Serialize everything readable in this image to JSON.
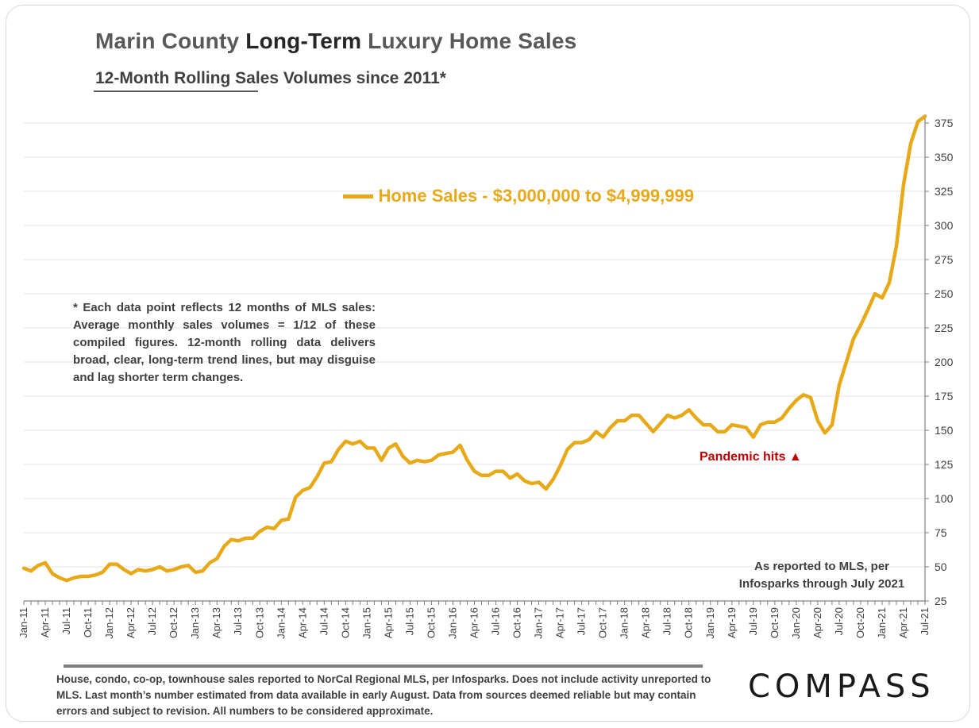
{
  "header": {
    "title_part1": "Marin County ",
    "title_part2": "Long-Term",
    "title_part3": " Luxury Home Sales",
    "subtitle": "12-Month Rolling Sales Volumes since 2011*"
  },
  "annotations": {
    "note": "* Each data point reflects 12 months of MLS sales: Average monthly sales volumes = 1/12 of these compiled figures. 12-month rolling data delivers broad, clear, long-term trend lines, but may disguise and lag shorter term changes.",
    "pandemic": "Pandemic hits ▲",
    "reported_line1": "As reported to MLS, per",
    "reported_line2": "Infosparks through July 2021",
    "footer": "House, condo, co-op, townhouse sales reported to NorCal Regional MLS, per Infosparks. Does not include activity unreported to MLS. Last month’s number estimated from data available in early August. Data from sources deemed reliable but may contain errors and subject to revision.  All numbers to be considered approximate.",
    "logo": "COMPASS"
  },
  "colors": {
    "series": "#e8a919",
    "grid": "#e3e3e3",
    "axis": "#7f7f7f",
    "pandemic": "#c00000"
  },
  "chart_data": {
    "type": "line",
    "ylim": [
      25,
      375
    ],
    "y_ticks": [
      25,
      50,
      75,
      100,
      125,
      150,
      175,
      200,
      225,
      250,
      275,
      300,
      325,
      350,
      375
    ],
    "x_tick_labels": [
      "Jan-11",
      "Apr-11",
      "Jul-11",
      "Oct-11",
      "Jan-12",
      "Apr-12",
      "Jul-12",
      "Oct-12",
      "Jan-13",
      "Apr-13",
      "Jul-13",
      "Oct-13",
      "Jan-14",
      "Apr-14",
      "Jul-14",
      "Oct-14",
      "Jan-15",
      "Apr-15",
      "Jul-15",
      "Oct-15",
      "Jan-16",
      "Apr-16",
      "Jul-16",
      "Oct-16",
      "Jan-17",
      "Apr-17",
      "Jul-17",
      "Oct-17",
      "Jan-18",
      "Apr-18",
      "Jul-18",
      "Oct-18",
      "Jan-19",
      "Apr-19",
      "Jul-19",
      "Oct-19",
      "Jan-20",
      "Apr-20",
      "Jul-20",
      "Oct-20",
      "Jan-21",
      "Apr-21",
      "Jul-21"
    ],
    "grid": true,
    "legend_position": "top-center",
    "series": [
      {
        "name": "Home Sales - $3,000,000 to $4,999,999",
        "values": [
          49,
          47,
          51,
          53,
          45,
          42,
          40,
          42,
          43,
          43,
          44,
          46,
          52,
          52,
          48,
          45,
          48,
          47,
          48,
          50,
          47,
          48,
          50,
          51,
          46,
          47,
          53,
          56,
          65,
          70,
          69,
          71,
          71,
          76,
          79,
          78,
          84,
          85,
          101,
          106,
          108,
          116,
          126,
          127,
          136,
          142,
          140,
          142,
          137,
          137,
          128,
          137,
          140,
          131,
          126,
          128,
          127,
          128,
          132,
          133,
          134,
          139,
          128,
          120,
          117,
          117,
          120,
          120,
          115,
          118,
          113,
          111,
          112,
          107,
          114,
          124,
          136,
          141,
          141,
          143,
          149,
          145,
          152,
          157,
          157,
          161,
          161,
          155,
          149,
          155,
          161,
          159,
          161,
          165,
          159,
          154,
          154,
          149,
          149,
          154,
          153,
          152,
          145,
          154,
          156,
          156,
          159,
          166,
          172,
          176,
          174,
          157,
          148,
          154,
          183,
          200,
          217,
          227,
          238,
          250,
          247,
          258,
          285,
          330,
          360,
          376,
          380
        ]
      }
    ]
  }
}
